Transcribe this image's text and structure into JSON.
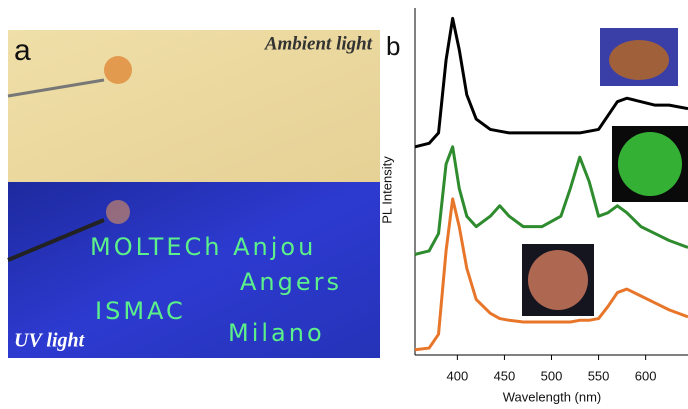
{
  "panel_a": {
    "label": "a",
    "ambient_label": "Ambient light",
    "uv_label": "UV light",
    "handwriting": [
      "MOLTECh Anjou",
      "Angers",
      "ISMAC",
      "Milano"
    ]
  },
  "chart_data": {
    "type": "line",
    "panel_label": "b",
    "xlabel": "Wavelength (nm)",
    "ylabel": "PL Intensity",
    "x": [
      355,
      370,
      380,
      388,
      395,
      402,
      410,
      420,
      435,
      445,
      455,
      470,
      490,
      510,
      520,
      530,
      540,
      550,
      560,
      570,
      580,
      595,
      610,
      625,
      645
    ],
    "series": [
      {
        "color": "#000000",
        "values": [
          60,
          61,
          64,
          85,
          97,
          88,
          75,
          68,
          65,
          64.5,
          64,
          64,
          64,
          64,
          64,
          64,
          64.5,
          65,
          69,
          73,
          74,
          73,
          72,
          72,
          71
        ]
      },
      {
        "color": "#2e8b2e",
        "values": [
          29,
          30,
          35,
          55,
          60,
          48,
          40,
          37,
          40,
          43,
          40,
          37,
          37,
          40,
          48,
          57,
          50,
          40,
          41,
          43,
          41,
          37,
          35,
          33,
          31
        ]
      },
      {
        "color": "#e8762a",
        "values": [
          1.5,
          2,
          6,
          30,
          45,
          37,
          25,
          16,
          12,
          10.5,
          10,
          9.5,
          9.5,
          9.5,
          9.5,
          10,
          10,
          10.5,
          14,
          18,
          19,
          17,
          15,
          13,
          11
        ]
      }
    ],
    "xlim": [
      355,
      645
    ],
    "ylim": [
      0,
      100
    ],
    "xticks": [
      400,
      450,
      500,
      550,
      600
    ]
  }
}
